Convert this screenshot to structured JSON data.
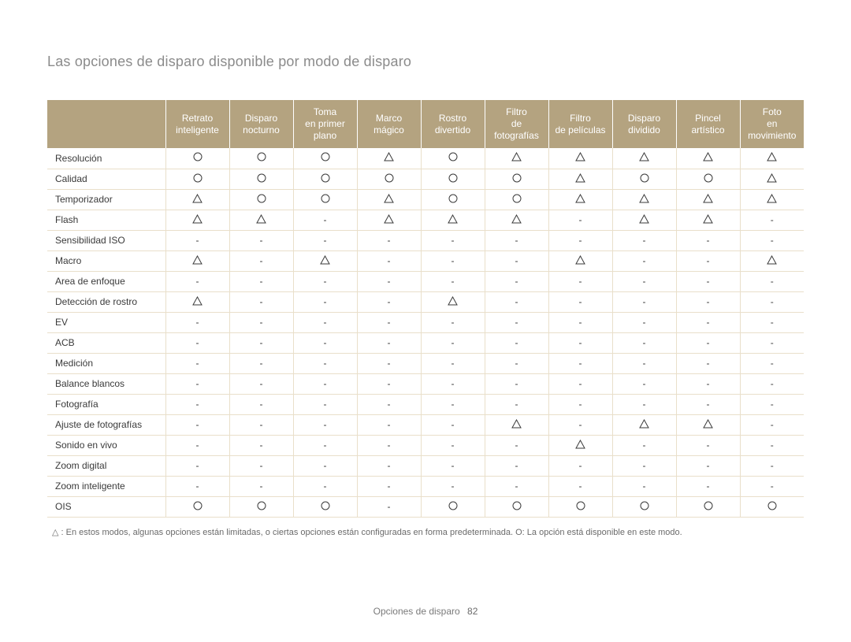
{
  "title": "Las opciones de disparo disponible por modo de disparo",
  "footer": {
    "section": "Opciones de disparo",
    "page": "82"
  },
  "footnote": "△ : En estos modos, algunas opciones están limitadas, o ciertas opciones están configuradas en forma predeterminada. O: La opción está disponible en este modo.",
  "style": {
    "header_bg": "#b4a380",
    "header_fg": "#ffffff",
    "grid_color": "#e9dfca",
    "row_font_size": 12,
    "header_font_size": 12,
    "title_color": "#8b8b8b",
    "circle_stroke": "#3a3a3a",
    "triangle_stroke": "#3a3a3a",
    "dash_color": "#3a3a3a"
  },
  "columns": [
    "Retrato inteligente",
    "Disparo nocturno",
    "Toma en primer plano",
    "Marco mágico",
    "Rostro divertido",
    "Filtro de fotografías",
    "Filtro de películas",
    "Disparo dividido",
    "Pincel artístico",
    "Foto en movimiento"
  ],
  "rows": [
    {
      "label": "Resolución",
      "cells": [
        "O",
        "O",
        "O",
        "T",
        "O",
        "T",
        "T",
        "T",
        "T",
        "T"
      ]
    },
    {
      "label": "Calidad",
      "cells": [
        "O",
        "O",
        "O",
        "O",
        "O",
        "O",
        "T",
        "O",
        "O",
        "T"
      ]
    },
    {
      "label": "Temporizador",
      "cells": [
        "T",
        "O",
        "O",
        "T",
        "O",
        "O",
        "T",
        "T",
        "T",
        "T"
      ]
    },
    {
      "label": "Flash",
      "cells": [
        "T",
        "T",
        "-",
        "T",
        "T",
        "T",
        "-",
        "T",
        "T",
        "-"
      ]
    },
    {
      "label": "Sensibilidad ISO",
      "cells": [
        "-",
        "-",
        "-",
        "-",
        "-",
        "-",
        "-",
        "-",
        "-",
        "-"
      ]
    },
    {
      "label": "Macro",
      "cells": [
        "T",
        "-",
        "T",
        "-",
        "-",
        "-",
        "T",
        "-",
        "-",
        "T"
      ]
    },
    {
      "label": "Area de enfoque",
      "cells": [
        "-",
        "-",
        "-",
        "-",
        "-",
        "-",
        "-",
        "-",
        "-",
        "-"
      ]
    },
    {
      "label": "Detección de rostro",
      "cells": [
        "T",
        "-",
        "-",
        "-",
        "T",
        "-",
        "-",
        "-",
        "-",
        "-"
      ]
    },
    {
      "label": "EV",
      "cells": [
        "-",
        "-",
        "-",
        "-",
        "-",
        "-",
        "-",
        "-",
        "-",
        "-"
      ]
    },
    {
      "label": "ACB",
      "cells": [
        "-",
        "-",
        "-",
        "-",
        "-",
        "-",
        "-",
        "-",
        "-",
        "-"
      ]
    },
    {
      "label": "Medición",
      "cells": [
        "-",
        "-",
        "-",
        "-",
        "-",
        "-",
        "-",
        "-",
        "-",
        "-"
      ]
    },
    {
      "label": "Balance blancos",
      "cells": [
        "-",
        "-",
        "-",
        "-",
        "-",
        "-",
        "-",
        "-",
        "-",
        "-"
      ]
    },
    {
      "label": "Fotografía",
      "cells": [
        "-",
        "-",
        "-",
        "-",
        "-",
        "-",
        "-",
        "-",
        "-",
        "-"
      ]
    },
    {
      "label": "Ajuste de fotografías",
      "cells": [
        "-",
        "-",
        "-",
        "-",
        "-",
        "T",
        "-",
        "T",
        "T",
        "-"
      ]
    },
    {
      "label": "Sonido en vivo",
      "cells": [
        "-",
        "-",
        "-",
        "-",
        "-",
        "-",
        "T",
        "-",
        "-",
        "-"
      ]
    },
    {
      "label": "Zoom digital",
      "cells": [
        "-",
        "-",
        "-",
        "-",
        "-",
        "-",
        "-",
        "-",
        "-",
        "-"
      ]
    },
    {
      "label": "Zoom inteligente",
      "cells": [
        "-",
        "-",
        "-",
        "-",
        "-",
        "-",
        "-",
        "-",
        "-",
        "-"
      ]
    },
    {
      "label": "OIS",
      "cells": [
        "O",
        "O",
        "O",
        "-",
        "O",
        "O",
        "O",
        "O",
        "O",
        "O"
      ]
    }
  ]
}
